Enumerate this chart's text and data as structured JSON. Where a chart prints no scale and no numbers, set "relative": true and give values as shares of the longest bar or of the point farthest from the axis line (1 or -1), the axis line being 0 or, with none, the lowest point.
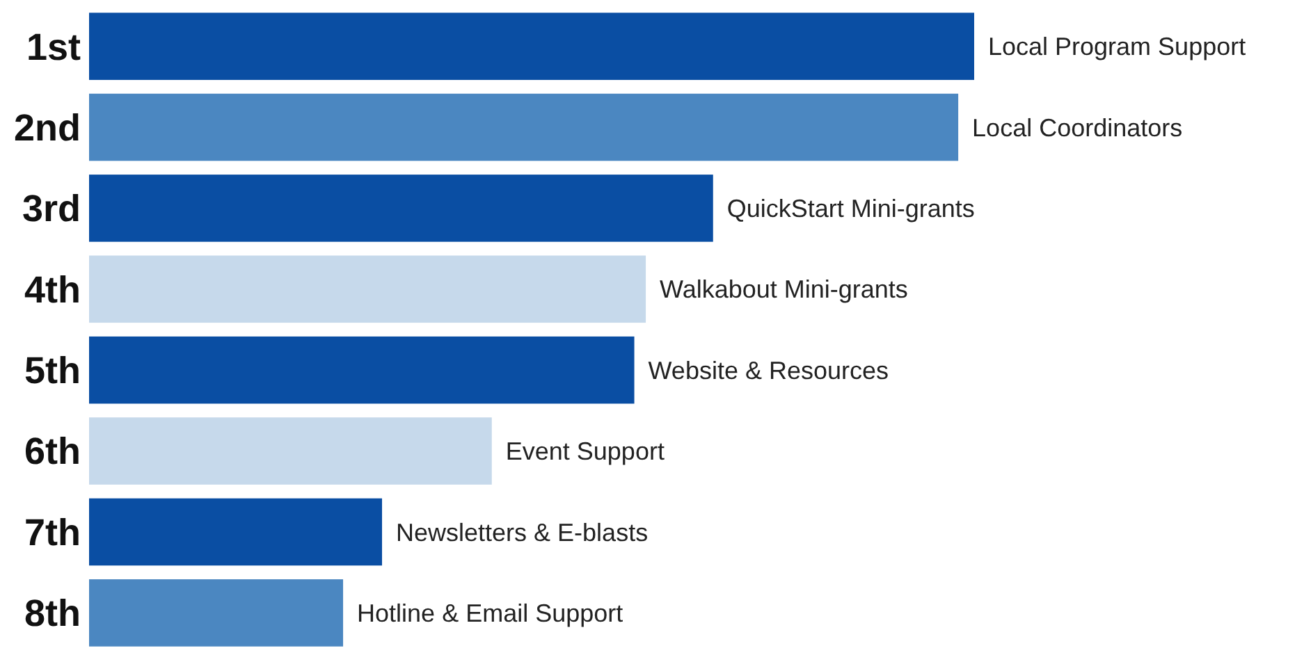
{
  "chart_data": {
    "type": "bar",
    "orientation": "horizontal",
    "relative": true,
    "categories": [
      "1st",
      "2nd",
      "3rd",
      "4th",
      "5th",
      "6th",
      "7th",
      "8th"
    ],
    "values": [
      1,
      0.982,
      0.705,
      0.629,
      0.616,
      0.455,
      0.331,
      0.287
    ],
    "colors": [
      "#0a4ea3",
      "#4b87c1",
      "#0a4ea3",
      "#c6d9eb",
      "#0a4ea3",
      "#c6d9eb",
      "#0a4ea3",
      "#4b87c1"
    ],
    "annotations": [
      {
        "text": "Local Program Support",
        "x": 1,
        "y": "1st"
      },
      {
        "text": "Local Coordinators",
        "x": 0.982,
        "y": "2nd"
      },
      {
        "text": "QuickStart Mini-grants",
        "x": 0.705,
        "y": "3rd"
      },
      {
        "text": "Walkabout Mini-grants",
        "x": 0.629,
        "y": "4th"
      },
      {
        "text": "Website & Resources",
        "x": 0.616,
        "y": "5th"
      },
      {
        "text": "Event Support",
        "x": 0.455,
        "y": "6th"
      },
      {
        "text": "Newsletters & E-blasts",
        "x": 0.331,
        "y": "7th"
      },
      {
        "text": "Hotline & Email Support",
        "x": 0.287,
        "y": "8th"
      }
    ]
  }
}
